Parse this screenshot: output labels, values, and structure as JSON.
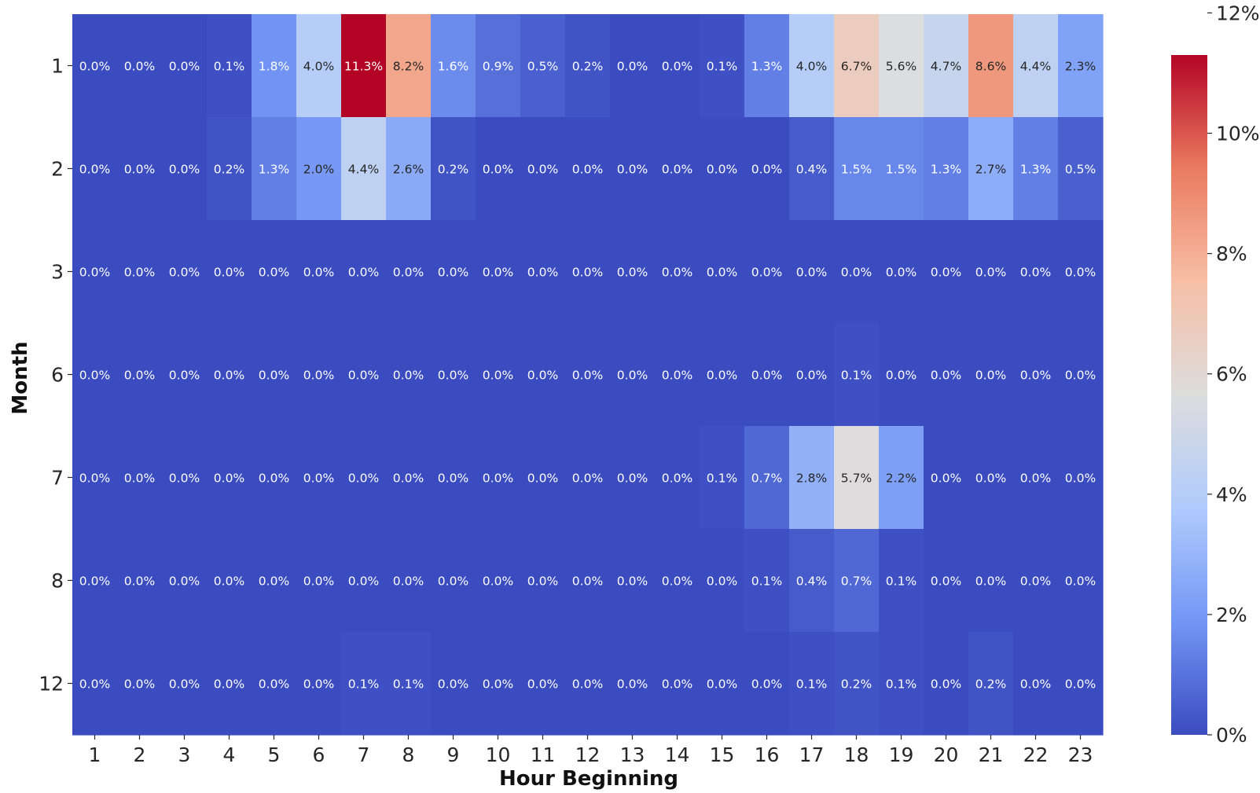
{
  "chart_data": {
    "type": "heatmap",
    "xlabel": "Hour Beginning",
    "ylabel": "Month",
    "x": [
      "1",
      "2",
      "3",
      "4",
      "5",
      "6",
      "7",
      "8",
      "9",
      "10",
      "11",
      "12",
      "13",
      "14",
      "15",
      "16",
      "17",
      "18",
      "19",
      "20",
      "21",
      "22",
      "23"
    ],
    "y": [
      "1",
      "2",
      "3",
      "6",
      "7",
      "8",
      "12"
    ],
    "values": [
      [
        0.0,
        0.0,
        0.0,
        0.1,
        1.8,
        4.0,
        11.3,
        8.2,
        1.6,
        0.9,
        0.5,
        0.2,
        0.0,
        0.0,
        0.1,
        1.3,
        4.0,
        6.7,
        5.6,
        4.7,
        8.6,
        4.4,
        2.3
      ],
      [
        0.0,
        0.0,
        0.0,
        0.2,
        1.3,
        2.0,
        4.4,
        2.6,
        0.2,
        0.0,
        0.0,
        0.0,
        0.0,
        0.0,
        0.0,
        0.0,
        0.4,
        1.5,
        1.5,
        1.3,
        2.7,
        1.3,
        0.5
      ],
      [
        0.0,
        0.0,
        0.0,
        0.0,
        0.0,
        0.0,
        0.0,
        0.0,
        0.0,
        0.0,
        0.0,
        0.0,
        0.0,
        0.0,
        0.0,
        0.0,
        0.0,
        0.0,
        0.0,
        0.0,
        0.0,
        0.0,
        0.0
      ],
      [
        0.0,
        0.0,
        0.0,
        0.0,
        0.0,
        0.0,
        0.0,
        0.0,
        0.0,
        0.0,
        0.0,
        0.0,
        0.0,
        0.0,
        0.0,
        0.0,
        0.0,
        0.1,
        0.0,
        0.0,
        0.0,
        0.0,
        0.0
      ],
      [
        0.0,
        0.0,
        0.0,
        0.0,
        0.0,
        0.0,
        0.0,
        0.0,
        0.0,
        0.0,
        0.0,
        0.0,
        0.0,
        0.0,
        0.1,
        0.7,
        2.8,
        5.7,
        2.2,
        0.0,
        0.0,
        0.0,
        0.0
      ],
      [
        0.0,
        0.0,
        0.0,
        0.0,
        0.0,
        0.0,
        0.0,
        0.0,
        0.0,
        0.0,
        0.0,
        0.0,
        0.0,
        0.0,
        0.0,
        0.1,
        0.4,
        0.7,
        0.1,
        0.0,
        0.0,
        0.0,
        0.0
      ],
      [
        0.0,
        0.0,
        0.0,
        0.0,
        0.0,
        0.0,
        0.1,
        0.1,
        0.0,
        0.0,
        0.0,
        0.0,
        0.0,
        0.0,
        0.0,
        0.0,
        0.1,
        0.2,
        0.1,
        0.0,
        0.2,
        0.0,
        0.0
      ]
    ],
    "value_format": "0.0%",
    "colormap": "coolwarm",
    "colormap_stops": [
      "#3b4cc0",
      "#7396f5",
      "#b0cbfc",
      "#dddddd",
      "#f6bfa6",
      "#ea7b60",
      "#b40426"
    ],
    "colorbar": {
      "range": [
        0,
        11.3
      ],
      "ticks": [
        0,
        2,
        4,
        6,
        8,
        10,
        12
      ],
      "tick_labels": [
        "0%",
        "2%",
        "4%",
        "6%",
        "8%",
        "10%",
        "12%"
      ],
      "position": "right"
    },
    "legend": "none",
    "grid": false
  }
}
